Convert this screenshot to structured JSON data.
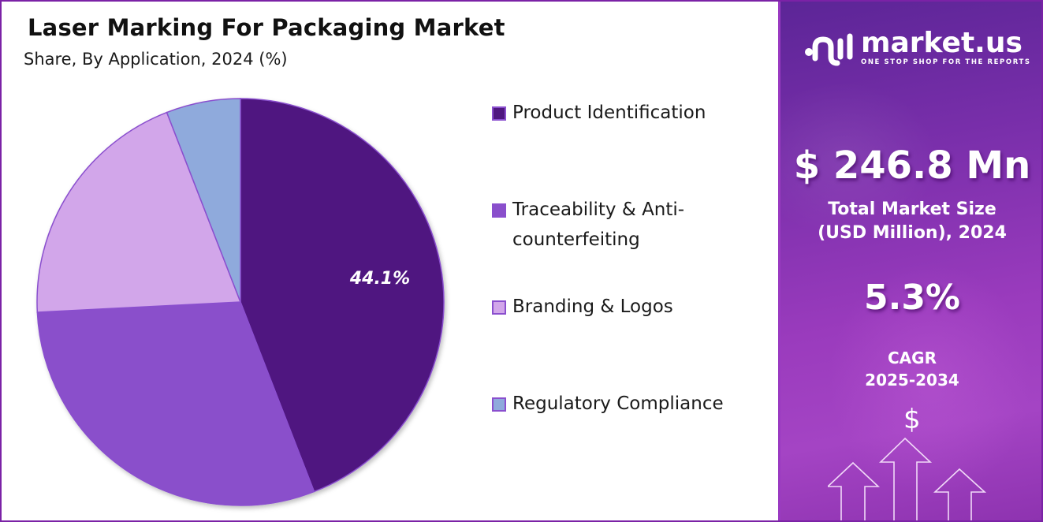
{
  "header": {
    "title": "Laser Marking For Packaging Market",
    "subtitle": "Share, By Application, 2024 (%)"
  },
  "chart_data": {
    "type": "pie",
    "title": "Laser Marking For Packaging Market",
    "subtitle": "Share, By Application, 2024 (%)",
    "categories": [
      "Product Identification",
      "Traceability & Anti-counterfeiting",
      "Branding & Logos",
      "Regulatory Compliance"
    ],
    "values": [
      44.1,
      30.1,
      19.9,
      5.9
    ],
    "colors": [
      "#4f1780",
      "#8a4fcb",
      "#d2a6ea",
      "#8faadc"
    ],
    "data_labels": [
      {
        "category": "Product Identification",
        "text": "44.1%"
      }
    ],
    "start_angle_deg": 0,
    "direction": "clockwise",
    "legend_position": "right"
  },
  "pie": {
    "label_main": "44.1%"
  },
  "legend": {
    "items": [
      {
        "label": "Product Identification",
        "color": "#4f1780"
      },
      {
        "label": "Traceability & Anti-counterfeiting",
        "color": "#8a4fcb"
      },
      {
        "label": "Branding & Logos",
        "color": "#d2a6ea"
      },
      {
        "label": "Regulatory Compliance",
        "color": "#8faadc"
      }
    ]
  },
  "panel": {
    "brand_name": "market.us",
    "brand_tagline": "ONE STOP SHOP FOR THE REPORTS",
    "market_size_value": "$ 246.8 Mn",
    "market_size_label_line1": "Total Market Size",
    "market_size_label_line2": "(USD Million), 2024",
    "cagr_value": "5.3%",
    "cagr_label_line1": "CAGR",
    "cagr_label_line2": "2025-2034",
    "dollar_symbol": "$",
    "icons": [
      "logo-icon",
      "dollar-icon",
      "growth-arrows-icon"
    ]
  },
  "colors": {
    "frame": "#7b22a6",
    "panel_dark": "#5c2597",
    "panel_light": "#a444c4"
  }
}
